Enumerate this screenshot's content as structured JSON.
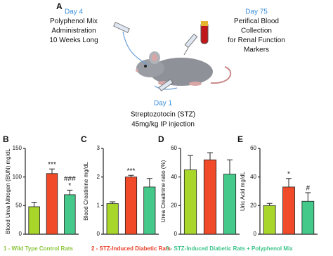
{
  "panel_a": {
    "label": "A",
    "left": {
      "day": "Day 4",
      "lines": [
        "Polyphenol Mix",
        "Administration",
        "10 Weeks Long"
      ]
    },
    "right": {
      "day": "Day 75",
      "lines": [
        "Perifical Blood",
        "Collection",
        "for Renal Function",
        "Markers"
      ]
    },
    "bottom": {
      "day": "Day 1",
      "lines": [
        "Streptozotocin (STZ)",
        "45mg/kg IP injection"
      ]
    },
    "day_color": "#3b8fd9"
  },
  "legend": [
    {
      "text": "1 - Wild Type Control Rats",
      "color": "#8cc63f"
    },
    {
      "text": "2 - STZ-Induced Diabetic Rats",
      "color": "#e8402a"
    },
    {
      "text": "3 - STZ-Induced Diabetic Rats + Polyphenol Mix",
      "color": "#3cc48a"
    }
  ],
  "chart_data": [
    {
      "type": "bar",
      "panel": "B",
      "ylabel": "Blood Urea Nitrogen (BUN) mg/dL",
      "values": [
        48,
        106,
        69
      ],
      "errors": [
        8,
        8,
        8
      ],
      "colors": [
        "#a8d62a",
        "#f04a28",
        "#44c98a"
      ],
      "significance": [
        [],
        [
          "***"
        ],
        [
          "###",
          "*"
        ]
      ],
      "ylim": [
        0,
        150
      ],
      "yticks": [
        0,
        50,
        100,
        150
      ]
    },
    {
      "type": "bar",
      "panel": "C",
      "ylabel": "Blood Creatinine mg/dL",
      "values": [
        1.07,
        2.0,
        1.65
      ],
      "errors": [
        0.06,
        0.06,
        0.3
      ],
      "colors": [
        "#a8d62a",
        "#f04a28",
        "#44c98a"
      ],
      "significance": [
        [],
        [
          "***"
        ],
        []
      ],
      "ylim": [
        0,
        3
      ],
      "yticks": [
        0,
        1,
        2,
        3
      ]
    },
    {
      "type": "bar",
      "panel": "D",
      "ylabel": "Urea Creatinine ratio (%)",
      "values": [
        45,
        52,
        42
      ],
      "errors": [
        10,
        5,
        10
      ],
      "colors": [
        "#a8d62a",
        "#f04a28",
        "#44c98a"
      ],
      "significance": [
        [],
        [],
        []
      ],
      "ylim": [
        0,
        60
      ],
      "yticks": [
        0,
        20,
        40,
        60
      ]
    },
    {
      "type": "bar",
      "panel": "E",
      "ylabel": "Uric Acid mg/dL",
      "values": [
        20,
        33,
        23
      ],
      "errors": [
        1.5,
        6,
        6
      ],
      "colors": [
        "#a8d62a",
        "#f04a28",
        "#44c98a"
      ],
      "significance": [
        [],
        [
          "*"
        ],
        [
          "#"
        ]
      ],
      "ylim": [
        0,
        60
      ],
      "yticks": [
        0,
        20,
        40,
        60
      ]
    }
  ]
}
